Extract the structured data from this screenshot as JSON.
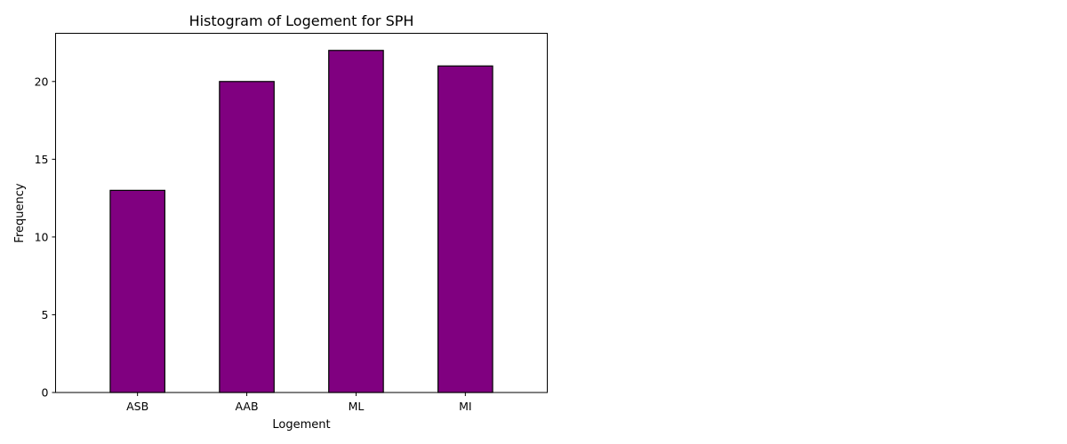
{
  "chart_data": {
    "type": "bar",
    "title": "Histogram of Logement for SPH",
    "xlabel": "Logement",
    "ylabel": "Frequency",
    "categories": [
      "ASB",
      "AAB",
      "ML",
      "MI"
    ],
    "values": [
      13,
      20,
      22,
      21
    ],
    "ylim": [
      0,
      23.1
    ],
    "yticks": [
      0,
      5,
      10,
      15,
      20
    ],
    "grid": false,
    "bar_color": "#800080",
    "edge_color": "#000000"
  }
}
